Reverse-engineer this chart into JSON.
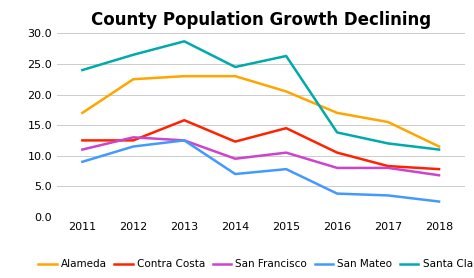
{
  "title": "County Population Growth Declining",
  "years": [
    2011,
    2012,
    2013,
    2014,
    2015,
    2016,
    2017,
    2018
  ],
  "series": {
    "Alameda": [
      17.0,
      22.5,
      23.0,
      23.0,
      20.5,
      17.0,
      15.5,
      11.5
    ],
    "Contra Costa": [
      12.5,
      12.5,
      15.8,
      12.3,
      14.5,
      10.5,
      8.3,
      7.8
    ],
    "San Francisco": [
      11.0,
      13.0,
      12.5,
      9.5,
      10.5,
      8.0,
      8.0,
      6.8
    ],
    "San Mateo": [
      9.0,
      11.5,
      12.5,
      7.0,
      7.8,
      3.8,
      3.5,
      2.5
    ],
    "Santa Clara": [
      24.0,
      26.5,
      28.7,
      24.5,
      26.3,
      13.8,
      12.0,
      11.0
    ]
  },
  "colors": {
    "Alameda": "#FFA500",
    "Contra Costa": "#FF2200",
    "San Francisco": "#CC44CC",
    "San Mateo": "#4499FF",
    "Santa Clara": "#00AAAA"
  },
  "ylim": [
    0,
    30.0
  ],
  "yticks": [
    0.0,
    5.0,
    10.0,
    15.0,
    20.0,
    25.0,
    30.0
  ],
  "background_color": "#ffffff",
  "title_fontsize": 12,
  "legend_fontsize": 7.5,
  "axis_fontsize": 8.0
}
